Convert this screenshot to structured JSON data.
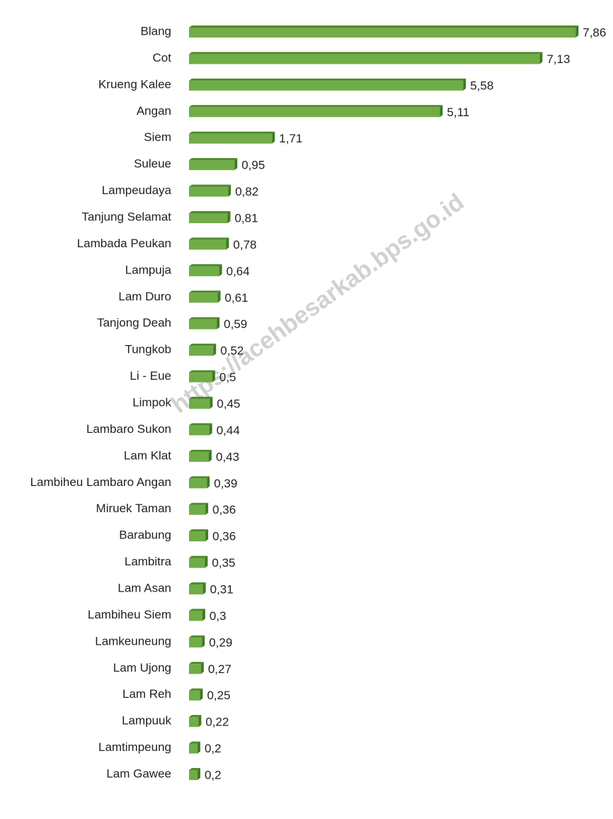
{
  "chart_data": {
    "type": "bar",
    "orientation": "horizontal",
    "categories": [
      "Blang",
      "Cot",
      "Krueng Kalee",
      "Angan",
      "Siem",
      "Suleue",
      "Lampeudaya",
      "Tanjung Selamat",
      "Lambada Peukan",
      "Lampuja",
      "Lam Duro",
      "Tanjong Deah",
      "Tungkob",
      "Li - Eue",
      "Limpok",
      "Lambaro Sukon",
      "Lam Klat",
      "Lambiheu Lambaro Angan",
      "Miruek Taman",
      "Barabung",
      "Lambitra",
      "Lam Asan",
      "Lambiheu Siem",
      "Lamkeuneung",
      "Lam Ujong",
      "Lam Reh",
      "Lampuuk",
      "Lamtimpeung",
      "Lam Gawee"
    ],
    "values": [
      7.86,
      7.13,
      5.58,
      5.11,
      1.71,
      0.95,
      0.82,
      0.81,
      0.78,
      0.64,
      0.61,
      0.59,
      0.52,
      0.5,
      0.45,
      0.44,
      0.43,
      0.39,
      0.36,
      0.36,
      0.35,
      0.31,
      0.3,
      0.29,
      0.27,
      0.25,
      0.22,
      0.2,
      0.2
    ],
    "value_labels": [
      "7,86",
      "7,13",
      "5,58",
      "5,11",
      "1,71",
      "0,95",
      "0,82",
      "0,81",
      "0,78",
      "0,64",
      "0,61",
      "0,59",
      "0,52",
      "0,5",
      "0,45",
      "0,44",
      "0,43",
      "0,39",
      "0,36",
      "0,36",
      "0,35",
      "0,31",
      "0,3",
      "0,29",
      "0,27",
      "0,25",
      "0,22",
      "0,2",
      "0,2"
    ],
    "color": "#70ad47",
    "xlim": [
      0,
      8
    ],
    "watermark": "https://acehbesarkab.bps.go.id"
  }
}
